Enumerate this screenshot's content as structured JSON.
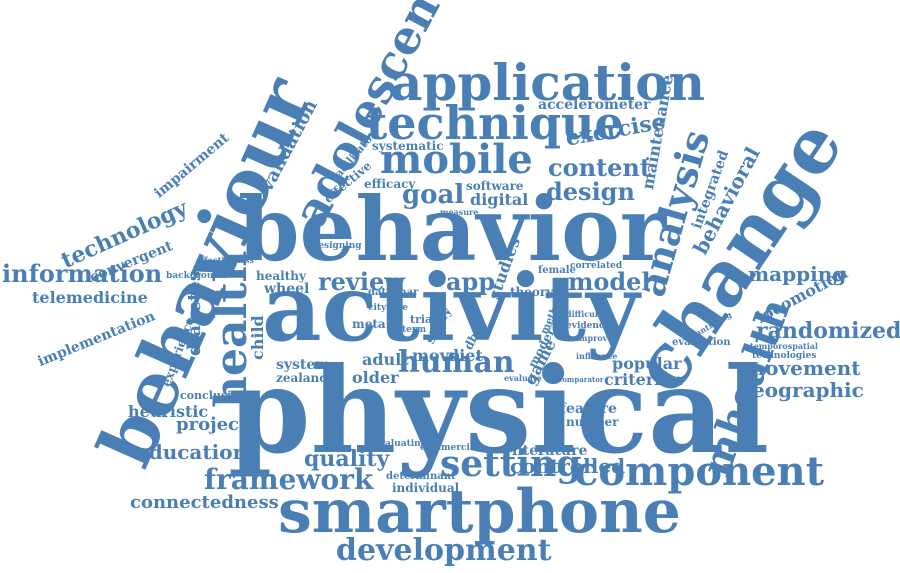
{
  "colors": {
    "word": "#4a7fb5",
    "background": "#ffffff"
  },
  "words": [
    "physical",
    "activity",
    "behavior",
    "behaviour",
    "change",
    "smartphone",
    "application",
    "adolescent",
    "technique",
    "mobile",
    "health",
    "mhealth",
    "component",
    "setting",
    "development",
    "analysis",
    "human",
    "framework",
    "information",
    "technology",
    "intervention",
    "goal",
    "design",
    "content",
    "exercise",
    "review",
    "model",
    "app",
    "validation",
    "impairment",
    "maintenance",
    "behavioral",
    "integrated",
    "accelerometer",
    "systematic",
    "facilitator",
    "effective",
    "efficacy",
    "software",
    "digital",
    "telemedicine",
    "implementation",
    "convergent",
    "diabetes",
    "child",
    "experience",
    "heuristic",
    "project",
    "education",
    "quality",
    "connectedness",
    "conclusion",
    "outcome",
    "literature",
    "controlled",
    "popular",
    "criterion",
    "randomized",
    "mapping",
    "locomotion",
    "movement",
    "geographic",
    "evaluation",
    "technologies",
    "temporospatial",
    "quantifying",
    "feature",
    "number",
    "commercial",
    "determinant",
    "individual",
    "evaluating",
    "older",
    "adult",
    "system",
    "zealand",
    "wheel",
    "diet",
    "movn",
    "game",
    "meta",
    "trial",
    "healthy",
    "background",
    "effectiveness",
    "designing",
    "measure",
    "female",
    "correlated",
    "difficulty",
    "improve",
    "influence",
    "comparator",
    "evidence",
    "method",
    "moderate",
    "evaluate",
    "cityfage",
    "data mar",
    "term",
    "study",
    "studies",
    "theory",
    "dbet",
    "trafficking"
  ]
}
